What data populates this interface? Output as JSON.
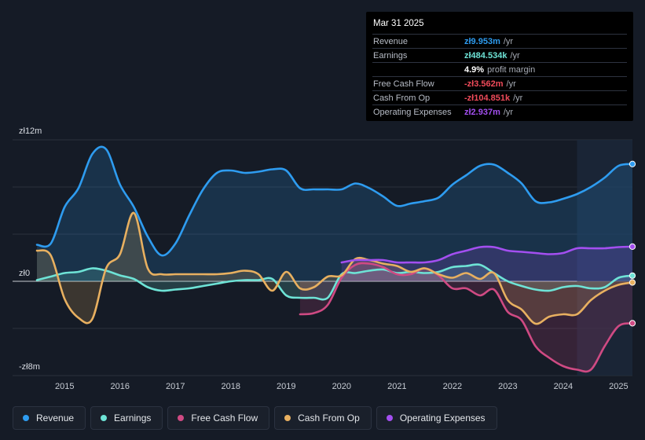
{
  "tooltip": {
    "date": "Mar 31 2025",
    "rows": [
      {
        "label": "Revenue",
        "value": "zł9.953m",
        "unit": "/yr",
        "color": "#2e9cf0"
      },
      {
        "label": "Earnings",
        "value": "zł484.534k",
        "unit": "/yr",
        "color": "#6ee3d6"
      },
      {
        "label": "",
        "value": "4.9%",
        "unit": "profit margin",
        "color": "#ffffff"
      },
      {
        "label": "Free Cash Flow",
        "value": "-zł3.562m",
        "unit": "/yr",
        "color": "#f04b5a"
      },
      {
        "label": "Cash From Op",
        "value": "-zł104.851k",
        "unit": "/yr",
        "color": "#f04b5a"
      },
      {
        "label": "Operating Expenses",
        "value": "zł2.937m",
        "unit": "/yr",
        "color": "#a34ff0"
      }
    ]
  },
  "legend": [
    {
      "label": "Revenue",
      "color": "#2e9cf0"
    },
    {
      "label": "Earnings",
      "color": "#6ee3d6"
    },
    {
      "label": "Free Cash Flow",
      "color": "#cf4a83"
    },
    {
      "label": "Cash From Op",
      "color": "#e8b060"
    },
    {
      "label": "Operating Expenses",
      "color": "#a34ff0"
    }
  ],
  "chart_data": {
    "type": "area",
    "title": "",
    "unit": "PLN",
    "ylim": [
      -8,
      12
    ],
    "y_tick_labels": [
      {
        "value": 12,
        "label": "zł12m"
      },
      {
        "value": 0,
        "label": "zł0"
      },
      {
        "value": -8,
        "label": "-zł8m"
      }
    ],
    "xlim": [
      2014.5,
      2025.25
    ],
    "x_ticks": [
      "2015",
      "2016",
      "2017",
      "2018",
      "2019",
      "2020",
      "2021",
      "2022",
      "2023",
      "2024",
      "2025"
    ],
    "highlight_from": 2024.25,
    "series": [
      {
        "name": "Revenue",
        "color": "#2e9cf0",
        "fill": true,
        "x": [
          2014.5,
          2014.75,
          2015.0,
          2015.25,
          2015.5,
          2015.75,
          2016.0,
          2016.25,
          2016.5,
          2016.75,
          2017.0,
          2017.25,
          2017.5,
          2017.75,
          2018.0,
          2018.25,
          2018.5,
          2018.75,
          2019.0,
          2019.25,
          2019.5,
          2019.75,
          2020.0,
          2020.25,
          2020.5,
          2020.75,
          2021.0,
          2021.25,
          2021.5,
          2021.75,
          2022.0,
          2022.25,
          2022.5,
          2022.75,
          2023.0,
          2023.25,
          2023.5,
          2023.75,
          2024.0,
          2024.25,
          2024.5,
          2024.75,
          2025.0,
          2025.25
        ],
        "y": [
          3.1,
          3.2,
          6.3,
          7.9,
          10.8,
          11.2,
          8.2,
          6.3,
          3.8,
          2.2,
          3.2,
          5.6,
          7.8,
          9.2,
          9.4,
          9.2,
          9.3,
          9.5,
          9.4,
          7.9,
          7.8,
          7.8,
          7.8,
          8.3,
          7.9,
          7.2,
          6.4,
          6.6,
          6.8,
          7.1,
          8.2,
          9.0,
          9.8,
          9.9,
          9.2,
          8.3,
          6.8,
          6.7,
          7.0,
          7.4,
          8.0,
          8.8,
          9.8,
          9.95
        ]
      },
      {
        "name": "Earnings",
        "color": "#6ee3d6",
        "fill": true,
        "x": [
          2014.5,
          2014.75,
          2015.0,
          2015.25,
          2015.5,
          2015.75,
          2016.0,
          2016.25,
          2016.5,
          2016.75,
          2017.0,
          2017.25,
          2017.5,
          2017.75,
          2018.0,
          2018.25,
          2018.5,
          2018.75,
          2019.0,
          2019.25,
          2019.5,
          2019.75,
          2020.0,
          2020.25,
          2020.5,
          2020.75,
          2021.0,
          2021.25,
          2021.5,
          2021.75,
          2022.0,
          2022.25,
          2022.5,
          2022.75,
          2023.0,
          2023.25,
          2023.5,
          2023.75,
          2024.0,
          2024.25,
          2024.5,
          2024.75,
          2025.0,
          2025.25
        ],
        "y": [
          0.1,
          0.4,
          0.7,
          0.8,
          1.1,
          0.9,
          0.5,
          0.2,
          -0.5,
          -0.8,
          -0.7,
          -0.6,
          -0.4,
          -0.2,
          0.0,
          0.1,
          0.1,
          0.2,
          -1.2,
          -1.4,
          -1.4,
          -1.4,
          0.6,
          0.7,
          0.9,
          1.0,
          0.7,
          0.8,
          0.7,
          0.8,
          1.2,
          1.3,
          1.4,
          0.7,
          0.0,
          -0.4,
          -0.7,
          -0.8,
          -0.5,
          -0.4,
          -0.6,
          -0.5,
          0.3,
          0.48
        ]
      },
      {
        "name": "Free Cash Flow",
        "color": "#cf4a83",
        "fill": true,
        "x": [
          2019.25,
          2019.5,
          2019.75,
          2020.0,
          2020.25,
          2020.5,
          2020.75,
          2021.0,
          2021.25,
          2021.5,
          2021.75,
          2022.0,
          2022.25,
          2022.5,
          2022.75,
          2023.0,
          2023.25,
          2023.5,
          2023.75,
          2024.0,
          2024.25,
          2024.5,
          2024.75,
          2025.0,
          2025.25
        ],
        "y": [
          -2.8,
          -2.7,
          -2.0,
          0.3,
          1.4,
          1.5,
          1.2,
          0.6,
          0.6,
          1.1,
          0.5,
          -0.6,
          -0.6,
          -1.2,
          -0.7,
          -2.6,
          -3.3,
          -5.5,
          -6.5,
          -7.2,
          -7.5,
          -7.5,
          -5.5,
          -3.8,
          -3.56
        ]
      },
      {
        "name": "Cash From Op",
        "color": "#e8b060",
        "fill": true,
        "x": [
          2014.5,
          2014.75,
          2015.0,
          2015.25,
          2015.5,
          2015.75,
          2016.0,
          2016.25,
          2016.5,
          2016.75,
          2017.0,
          2017.25,
          2017.5,
          2017.75,
          2018.0,
          2018.25,
          2018.5,
          2018.75,
          2019.0,
          2019.25,
          2019.5,
          2019.75,
          2020.0,
          2020.25,
          2020.5,
          2020.75,
          2021.0,
          2021.25,
          2021.5,
          2021.75,
          2022.0,
          2022.25,
          2022.5,
          2022.75,
          2023.0,
          2023.25,
          2023.5,
          2023.75,
          2024.0,
          2024.25,
          2024.5,
          2024.75,
          2025.0,
          2025.25
        ],
        "y": [
          2.6,
          2.2,
          -1.5,
          -3.1,
          -3.2,
          1.1,
          2.3,
          5.8,
          1.1,
          0.6,
          0.6,
          0.6,
          0.6,
          0.6,
          0.7,
          0.9,
          0.6,
          -0.8,
          0.8,
          -0.6,
          -0.5,
          0.4,
          0.5,
          1.9,
          1.8,
          1.5,
          1.3,
          0.8,
          1.1,
          0.6,
          0.3,
          0.7,
          0.2,
          0.7,
          -1.6,
          -2.4,
          -3.6,
          -3.0,
          -2.8,
          -2.8,
          -1.6,
          -0.8,
          -0.3,
          -0.1
        ]
      },
      {
        "name": "Operating Expenses",
        "color": "#a34ff0",
        "fill": true,
        "x": [
          2020.0,
          2020.25,
          2020.5,
          2020.75,
          2021.0,
          2021.25,
          2021.5,
          2021.75,
          2022.0,
          2022.25,
          2022.5,
          2022.75,
          2023.0,
          2023.25,
          2023.5,
          2023.75,
          2024.0,
          2024.25,
          2024.5,
          2024.75,
          2025.0,
          2025.25
        ],
        "y": [
          1.6,
          1.8,
          1.8,
          1.8,
          1.6,
          1.6,
          1.6,
          1.8,
          2.3,
          2.6,
          2.9,
          2.9,
          2.6,
          2.5,
          2.4,
          2.3,
          2.4,
          2.8,
          2.8,
          2.8,
          2.9,
          2.94
        ]
      }
    ]
  }
}
